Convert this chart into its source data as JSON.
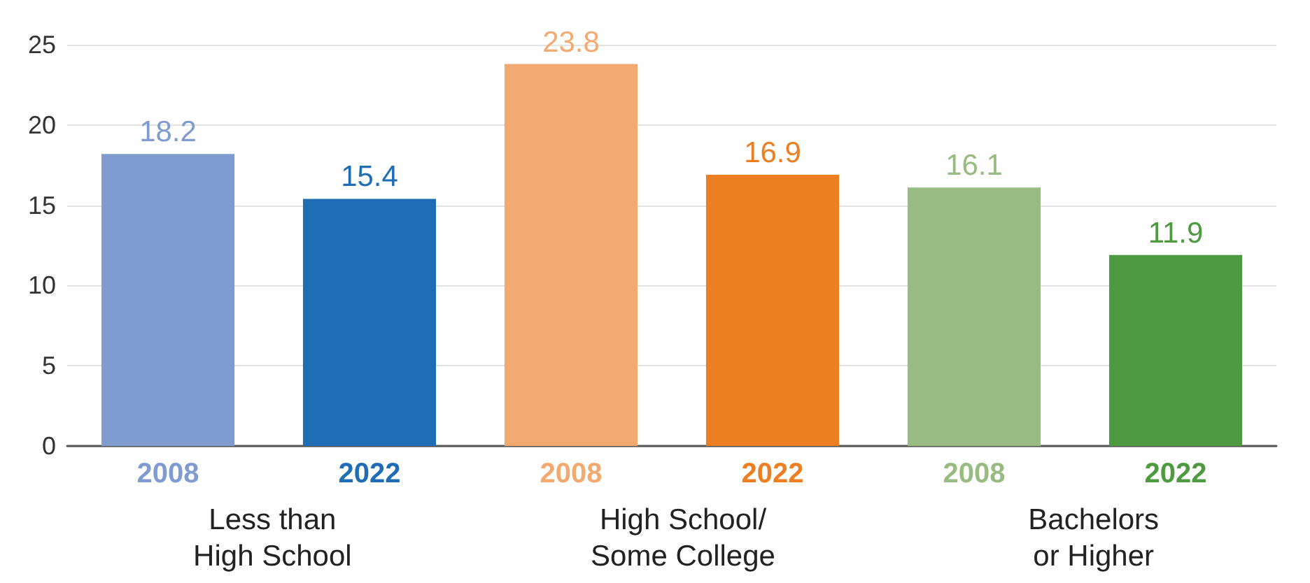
{
  "chart_data": {
    "type": "bar",
    "categories": [
      "2008",
      "2022",
      "2008",
      "2022",
      "2008",
      "2022"
    ],
    "values": [
      18.2,
      15.4,
      23.8,
      16.9,
      16.1,
      11.9
    ],
    "colors": [
      "#7f9bcf",
      "#1f6db5",
      "#f3aa70",
      "#ec7f22",
      "#98bb82",
      "#4e9a41"
    ],
    "ylim": [
      0,
      25
    ],
    "yticks": [
      0,
      5,
      10,
      15,
      20,
      25
    ],
    "grid": "y",
    "data_labels": true,
    "annotations": [
      "Less than\nHigh School",
      "High School/\nSome College",
      "Bachelors\nor Higher"
    ]
  }
}
